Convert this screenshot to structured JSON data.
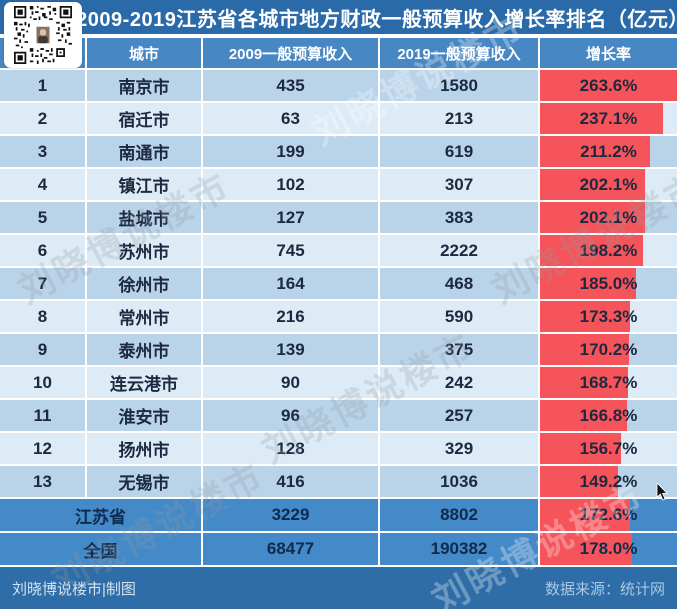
{
  "title": "2009-2019江苏省各城市地方财政一般预算收入增长率排名（亿元）",
  "columns": [
    "城市",
    "2009一般预算收入",
    "2019一般预算收入",
    "增长率"
  ],
  "watermark": "刘晓博说楼市",
  "footer": {
    "left": "刘晓博说楼市|制图",
    "right": "数据来源：统计网"
  },
  "colors": {
    "title_bar": "#2b6aa9",
    "header_row": "#4787c3",
    "row_odd": "#b9d3e8",
    "row_even": "#dcebf5",
    "summary_row": "#4489c8",
    "footer_bar": "#2e6da7",
    "bar_red": "#f4545a"
  },
  "chart_data": {
    "type": "table",
    "title": "2009-2019江苏省各城市地方财政一般预算收入增长率排名（亿元）",
    "unit": "亿元",
    "columns": [
      "城市",
      "2009一般预算收入",
      "2019一般预算收入",
      "增长率"
    ],
    "bar_scale_max_pct": 263.6,
    "rows": [
      {
        "rank": "1",
        "city": "南京市",
        "y2009": "435",
        "y2019": "1580",
        "growth": "263.6%",
        "growth_pct": 263.6
      },
      {
        "rank": "2",
        "city": "宿迁市",
        "y2009": "63",
        "y2019": "213",
        "growth": "237.1%",
        "growth_pct": 237.1
      },
      {
        "rank": "3",
        "city": "南通市",
        "y2009": "199",
        "y2019": "619",
        "growth": "211.2%",
        "growth_pct": 211.2
      },
      {
        "rank": "4",
        "city": "镇江市",
        "y2009": "102",
        "y2019": "307",
        "growth": "202.1%",
        "growth_pct": 202.1
      },
      {
        "rank": "5",
        "city": "盐城市",
        "y2009": "127",
        "y2019": "383",
        "growth": "202.1%",
        "growth_pct": 202.1
      },
      {
        "rank": "6",
        "city": "苏州市",
        "y2009": "745",
        "y2019": "2222",
        "growth": "198.2%",
        "growth_pct": 198.2
      },
      {
        "rank": "7",
        "city": "徐州市",
        "y2009": "164",
        "y2019": "468",
        "growth": "185.0%",
        "growth_pct": 185.0
      },
      {
        "rank": "8",
        "city": "常州市",
        "y2009": "216",
        "y2019": "590",
        "growth": "173.3%",
        "growth_pct": 173.3
      },
      {
        "rank": "9",
        "city": "泰州市",
        "y2009": "139",
        "y2019": "375",
        "growth": "170.2%",
        "growth_pct": 170.2
      },
      {
        "rank": "10",
        "city": "连云港市",
        "y2009": "90",
        "y2019": "242",
        "growth": "168.7%",
        "growth_pct": 168.7
      },
      {
        "rank": "11",
        "city": "淮安市",
        "y2009": "96",
        "y2019": "257",
        "growth": "166.8%",
        "growth_pct": 166.8
      },
      {
        "rank": "12",
        "city": "扬州市",
        "y2009": "128",
        "y2019": "329",
        "growth": "156.7%",
        "growth_pct": 156.7
      },
      {
        "rank": "13",
        "city": "无锡市",
        "y2009": "416",
        "y2019": "1036",
        "growth": "149.2%",
        "growth_pct": 149.2
      }
    ],
    "summary_rows": [
      {
        "city": "江苏省",
        "y2009": "3229",
        "y2019": "8802",
        "growth": "172.6%",
        "growth_pct": 172.6
      },
      {
        "city": "全国",
        "y2009": "68477",
        "y2019": "190382",
        "growth": "178.0%",
        "growth_pct": 178.0
      }
    ]
  }
}
